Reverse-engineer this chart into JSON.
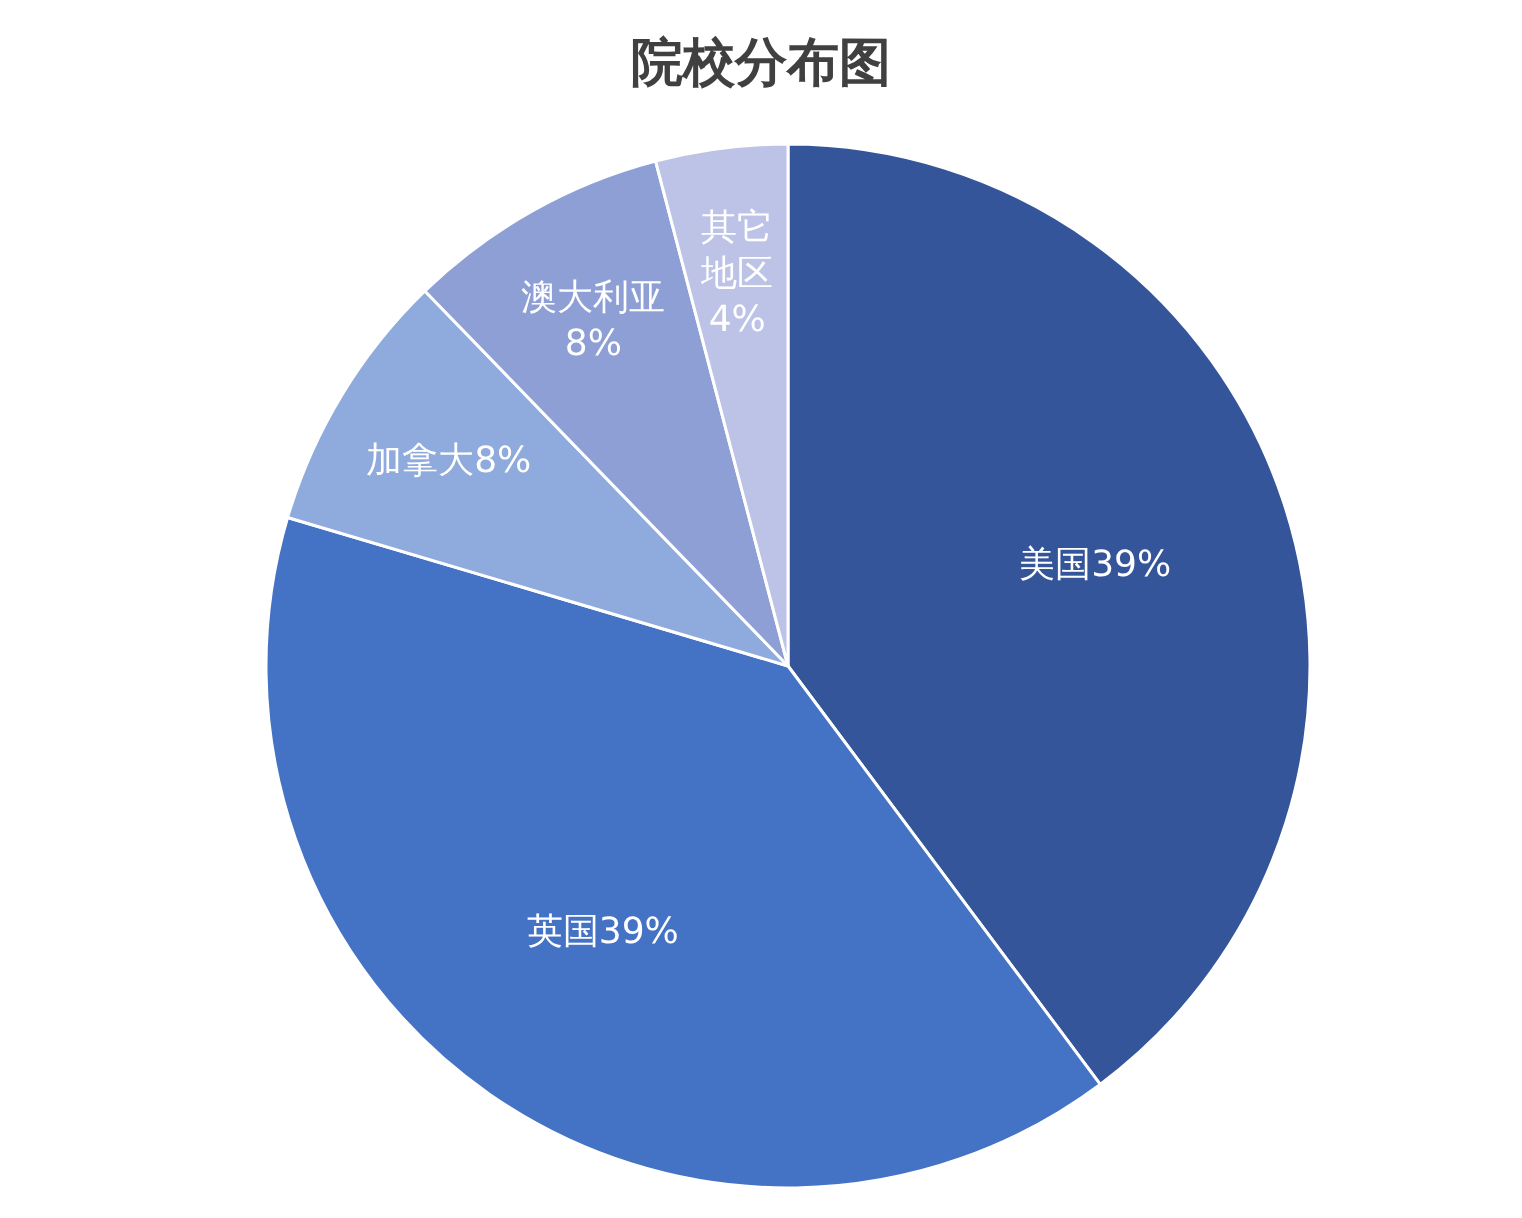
{
  "chart_data": {
    "type": "pie",
    "title": "院校分布图",
    "categories": [
      "美国",
      "英国",
      "加拿大",
      "澳大利亚",
      "其它地区"
    ],
    "values": [
      39,
      39,
      8,
      8,
      4
    ],
    "value_labels": [
      "39%",
      "39%",
      "8%",
      "8%",
      "4%"
    ],
    "colors": [
      "#34559a",
      "#4472c4",
      "#8faadc",
      "#8e9fd6",
      "#bcc3e6"
    ]
  }
}
